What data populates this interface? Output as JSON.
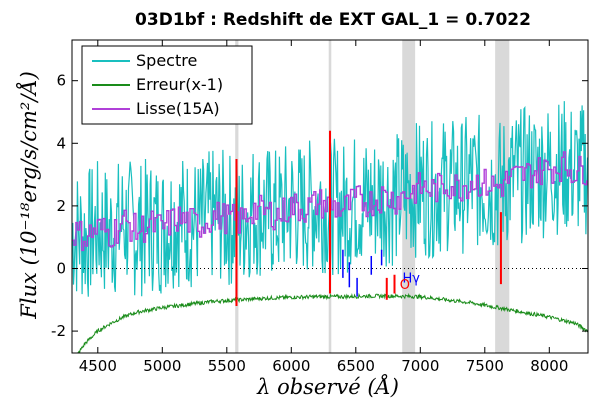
{
  "chart_data": {
    "type": "line",
    "title": "03D1bf : Redshift de EXT GAL_1 = 0.7022",
    "xlabel": "λ observé (Å)",
    "ylabel": "Flux (10⁻¹⁸erg/s/cm²/Å)",
    "xlim": [
      4300,
      8300
    ],
    "ylim": [
      -2.7,
      7.3
    ],
    "xticks": [
      4500,
      5000,
      5500,
      6000,
      6500,
      7000,
      7500,
      8000
    ],
    "yticks": [
      -2,
      0,
      2,
      4,
      6
    ],
    "grid": false,
    "legend_position": "top-left",
    "zero_line": {
      "y": 0,
      "style": "dotted"
    },
    "series": [
      {
        "name": "Spectre",
        "color": "#19bfbf",
        "x": [
          4300,
          4400,
          4500,
          4600,
          4700,
          4800,
          4900,
          5000,
          5100,
          5200,
          5300,
          5400,
          5500,
          5600,
          5700,
          5800,
          5900,
          6000,
          6100,
          6200,
          6300,
          6400,
          6500,
          6600,
          6700,
          6800,
          6900,
          7000,
          7100,
          7200,
          7300,
          7400,
          7500,
          7600,
          7700,
          7800,
          7900,
          8000,
          8100,
          8200,
          8300
        ],
        "y": [
          1.2,
          1.0,
          1.3,
          1.1,
          1.5,
          1.2,
          1.4,
          1.3,
          1.6,
          1.5,
          1.4,
          1.7,
          1.6,
          1.5,
          1.9,
          1.8,
          1.7,
          2.0,
          1.9,
          2.1,
          2.0,
          1.9,
          2.2,
          2.1,
          2.3,
          2.2,
          2.4,
          2.6,
          2.5,
          2.7,
          2.6,
          2.8,
          2.7,
          2.6,
          2.9,
          3.0,
          3.1,
          3.2,
          3.3,
          3.1,
          3.2
        ],
        "noise_amplitude": 2.2
      },
      {
        "name": "Erreur(x-1)",
        "color": "#1a8c1a",
        "x": [
          4300,
          4400,
          4500,
          4600,
          4700,
          4800,
          5000,
          5200,
          5400,
          5600,
          5800,
          6000,
          6200,
          6400,
          6600,
          6800,
          7000,
          7200,
          7400,
          7600,
          7800,
          8000,
          8200,
          8300
        ],
        "y": [
          -3.0,
          -2.4,
          -2.0,
          -1.75,
          -1.55,
          -1.4,
          -1.25,
          -1.15,
          -1.05,
          -1.0,
          -0.95,
          -0.92,
          -0.9,
          -0.9,
          -0.88,
          -0.88,
          -0.9,
          -1.0,
          -1.1,
          -1.25,
          -1.4,
          -1.55,
          -1.75,
          -2.0
        ]
      },
      {
        "name": "Lisse(15A)",
        "color": "#b040d8",
        "x": [
          4300,
          4400,
          4500,
          4600,
          4700,
          4800,
          4900,
          5000,
          5100,
          5200,
          5300,
          5400,
          5500,
          5600,
          5700,
          5800,
          5900,
          6000,
          6100,
          6200,
          6300,
          6400,
          6500,
          6600,
          6700,
          6800,
          6900,
          7000,
          7100,
          7200,
          7300,
          7400,
          7500,
          7600,
          7700,
          7800,
          7900,
          8000,
          8100,
          8200,
          8300
        ],
        "y": [
          1.2,
          1.0,
          1.3,
          1.1,
          1.5,
          1.2,
          1.4,
          1.3,
          1.6,
          1.5,
          1.4,
          1.7,
          1.6,
          1.5,
          1.9,
          1.8,
          1.7,
          2.0,
          1.9,
          2.1,
          2.0,
          1.9,
          2.2,
          2.1,
          2.3,
          2.2,
          2.4,
          2.6,
          2.5,
          2.7,
          2.6,
          2.8,
          2.7,
          2.6,
          2.9,
          3.0,
          3.1,
          3.2,
          3.3,
          3.1,
          3.2
        ],
        "noise_amplitude": 0.5
      }
    ],
    "shaded_bands": [
      {
        "x": [
          5565,
          5590
        ],
        "color": "#d9d9d9"
      },
      {
        "x": [
          6290,
          6310
        ],
        "color": "#d9d9d9"
      },
      {
        "x": [
          6860,
          6960
        ],
        "color": "#d9d9d9"
      },
      {
        "x": [
          7580,
          7690
        ],
        "color": "#d9d9d9"
      }
    ],
    "red_markers": [
      {
        "x": 5575,
        "y": [
          -1.2,
          3.5
        ]
      },
      {
        "x": 6300,
        "y": [
          -0.8,
          4.4
        ]
      },
      {
        "x": 6740,
        "y": [
          -1.0,
          -0.3
        ]
      },
      {
        "x": 6800,
        "y": [
          -0.8,
          -0.2
        ]
      },
      {
        "x": 7625,
        "y": [
          -0.5,
          1.8
        ]
      }
    ],
    "blue_markers": [
      {
        "x": 6400,
        "y": [
          -0.3,
          0.6
        ]
      },
      {
        "x": 6450,
        "y": [
          -0.6,
          0.2
        ]
      },
      {
        "x": 6510,
        "y": [
          -0.9,
          -0.3
        ]
      },
      {
        "x": 6620,
        "y": [
          -0.2,
          0.4
        ]
      },
      {
        "x": 6700,
        "y": [
          0.1,
          0.6
        ]
      }
    ],
    "annotations": [
      {
        "text": "Hγ",
        "x": 6930,
        "y": -0.45,
        "color": "#0000ff"
      },
      {
        "text": "O",
        "x": 6880,
        "y": -0.65,
        "color": "#ff0000"
      }
    ]
  }
}
